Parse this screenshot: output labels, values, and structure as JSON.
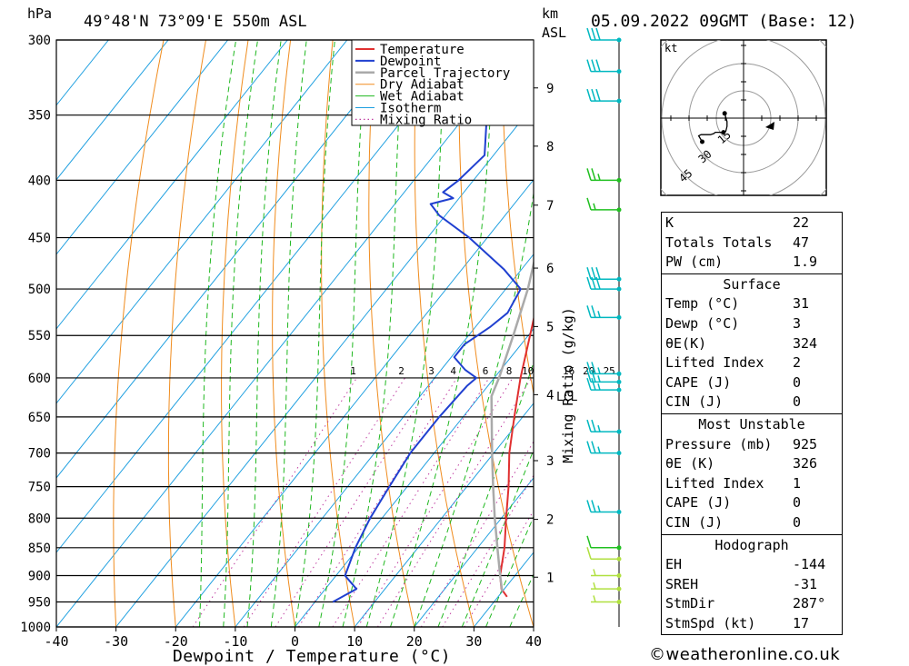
{
  "header": {
    "units_hpa": "hPa",
    "location": "49°48'N  73°09'E  550m  ASL",
    "units_km": "km",
    "units_asl": "ASL",
    "datetime": "05.09.2022  09GMT  (Base: 12)"
  },
  "chart_data": {
    "type": "line",
    "xlabel": "Dewpoint / Temperature (°C)",
    "ylabel_right": "Mixing Ratio (g/kg)",
    "x_ticks": [
      -40,
      -30,
      -20,
      -10,
      0,
      10,
      20,
      30,
      40
    ],
    "xlim": [
      -40,
      40
    ],
    "p_ticks": [
      300,
      350,
      400,
      450,
      500,
      550,
      600,
      650,
      700,
      750,
      800,
      850,
      900,
      950,
      1000
    ],
    "plim": [
      1000,
      300
    ],
    "km_ticks": [
      {
        "label": "9",
        "p": 331
      },
      {
        "label": "8",
        "p": 373
      },
      {
        "label": "7",
        "p": 421
      },
      {
        "label": "6",
        "p": 479
      },
      {
        "label": "5",
        "p": 540
      },
      {
        "label": "4",
        "p": 621
      },
      {
        "label": "3",
        "p": 711
      },
      {
        "label": "2",
        "p": 802
      },
      {
        "label": "1",
        "p": 903
      }
    ],
    "lcl": {
      "label": "LCL",
      "p": 623
    },
    "mixing_ratio_labels": [
      "1",
      "2",
      "3",
      "4",
      "6",
      "8",
      "10",
      "16",
      "20",
      "25"
    ],
    "legend": [
      "Temperature",
      "Dewpoint",
      "Parcel Trajectory",
      "Dry Adiabat",
      "Wet Adiabat",
      "Isotherm",
      "Mixing Ratio"
    ],
    "series": [
      {
        "name": "Temperature",
        "color": "#e03030",
        "points": [
          [
            940,
            31.5
          ],
          [
            925,
            29.5
          ],
          [
            900,
            27.5
          ],
          [
            850,
            24.5
          ],
          [
            800,
            20.8
          ],
          [
            750,
            17.0
          ],
          [
            700,
            12.6
          ],
          [
            650,
            8.6
          ],
          [
            600,
            4.4
          ],
          [
            550,
            0.3
          ],
          [
            500,
            -4.2
          ],
          [
            450,
            -9.8
          ],
          [
            420,
            -13.5
          ],
          [
            400,
            -17.5
          ],
          [
            350,
            -26.0
          ],
          [
            300,
            -35.5
          ]
        ]
      },
      {
        "name": "Dewpoint",
        "color": "#2040d0",
        "points": [
          [
            950,
            3.0
          ],
          [
            925,
            5.2
          ],
          [
            900,
            1.5
          ],
          [
            850,
            -0.5
          ],
          [
            800,
            -2.0
          ],
          [
            750,
            -3.0
          ],
          [
            700,
            -4.0
          ],
          [
            650,
            -4.0
          ],
          [
            610,
            -3.5
          ],
          [
            600,
            -3.0
          ],
          [
            590,
            -6.0
          ],
          [
            575,
            -9.5
          ],
          [
            560,
            -9.5
          ],
          [
            540,
            -7.5
          ],
          [
            525,
            -6.5
          ],
          [
            500,
            -7.5
          ],
          [
            480,
            -13.0
          ],
          [
            450,
            -23.0
          ],
          [
            430,
            -31.0
          ],
          [
            420,
            -34.0
          ],
          [
            415,
            -31.0
          ],
          [
            410,
            -33.5
          ],
          [
            400,
            -32.5
          ],
          [
            380,
            -31.5
          ],
          [
            350,
            -36.5
          ],
          [
            320,
            -44.0
          ],
          [
            310,
            -46.5
          ],
          [
            300,
            -40.5
          ]
        ]
      },
      {
        "name": "Parcel Trajectory",
        "color": "#aaaaaa",
        "points": [
          [
            930,
            30.0
          ],
          [
            900,
            27.5
          ],
          [
            850,
            23.3
          ],
          [
            800,
            18.9
          ],
          [
            750,
            14.4
          ],
          [
            700,
            9.7
          ],
          [
            650,
            4.8
          ],
          [
            623,
            2.0
          ],
          [
            600,
            0.8
          ],
          [
            550,
            -2.5
          ],
          [
            500,
            -6.3
          ],
          [
            450,
            -11.2
          ],
          [
            400,
            -17.5
          ],
          [
            350,
            -25.5
          ],
          [
            300,
            -36.0
          ]
        ]
      }
    ],
    "wind_barbs": [
      {
        "p": 300,
        "speed": 30,
        "color": "#00b8c0"
      },
      {
        "p": 320,
        "speed": 30,
        "color": "#00b8c0"
      },
      {
        "p": 340,
        "speed": 30,
        "color": "#00b8c0"
      },
      {
        "p": 400,
        "speed": 25,
        "color": "#20c020"
      },
      {
        "p": 425,
        "speed": 15,
        "color": "#20c020"
      },
      {
        "p": 490,
        "speed": 30,
        "color": "#00b8c0"
      },
      {
        "p": 500,
        "speed": 30,
        "color": "#00b8c0"
      },
      {
        "p": 530,
        "speed": 25,
        "color": "#00b8c0"
      },
      {
        "p": 595,
        "speed": 25,
        "color": "#00b8c0"
      },
      {
        "p": 605,
        "speed": 25,
        "color": "#00b8c0"
      },
      {
        "p": 615,
        "speed": 25,
        "color": "#00b8c0"
      },
      {
        "p": 670,
        "speed": 25,
        "color": "#00b8c0"
      },
      {
        "p": 700,
        "speed": 25,
        "color": "#00b8c0"
      },
      {
        "p": 790,
        "speed": 25,
        "color": "#00b8c0"
      },
      {
        "p": 850,
        "speed": 10,
        "color": "#20c020"
      },
      {
        "p": 870,
        "speed": 10,
        "color": "#b0e040"
      },
      {
        "p": 900,
        "speed": 5,
        "color": "#b0e040"
      },
      {
        "p": 925,
        "speed": 5,
        "color": "#b0e040"
      },
      {
        "p": 950,
        "speed": 5,
        "color": "#b0e040"
      }
    ],
    "hodograph": {
      "units": "kt",
      "ring_labels": [
        "15",
        "30",
        "45"
      ],
      "trace_kt": [
        [
          4,
          -16
        ],
        [
          -3,
          -14
        ],
        [
          -7,
          -14
        ],
        [
          -11,
          -15
        ],
        [
          -12,
          -17
        ],
        [
          -12,
          -24
        ],
        [
          -13,
          -25
        ],
        [
          -14,
          -28
        ],
        [
          -14,
          -31
        ],
        [
          -14,
          -36
        ],
        [
          -15,
          -38
        ],
        [
          -20,
          -35
        ]
      ]
    }
  },
  "indices": {
    "general": [
      {
        "label": "K",
        "value": "22"
      },
      {
        "label": "Totals Totals",
        "value": "47"
      },
      {
        "label": "PW (cm)",
        "value": "1.9"
      }
    ],
    "surface_title": "Surface",
    "surface": [
      {
        "label": "Temp (°C)",
        "value": "31"
      },
      {
        "label": "Dewp (°C)",
        "value": "3"
      },
      {
        "label": "θE(K)",
        "value": "324"
      },
      {
        "label": "Lifted Index",
        "value": "2"
      },
      {
        "label": "CAPE (J)",
        "value": "0"
      },
      {
        "label": "CIN (J)",
        "value": "0"
      }
    ],
    "unstable_title": "Most Unstable",
    "unstable": [
      {
        "label": "Pressure (mb)",
        "value": "925"
      },
      {
        "label": "θE (K)",
        "value": "326"
      },
      {
        "label": "Lifted Index",
        "value": "1"
      },
      {
        "label": "CAPE (J)",
        "value": "0"
      },
      {
        "label": "CIN (J)",
        "value": "0"
      }
    ],
    "hodograph_title": "Hodograph",
    "hodograph": [
      {
        "label": "EH",
        "value": "-144"
      },
      {
        "label": "SREH",
        "value": "-31"
      },
      {
        "label": "StmDir",
        "value": "287°"
      },
      {
        "label": "StmSpd (kt)",
        "value": "17"
      }
    ]
  },
  "copyright": "©weatheronline.co.uk"
}
